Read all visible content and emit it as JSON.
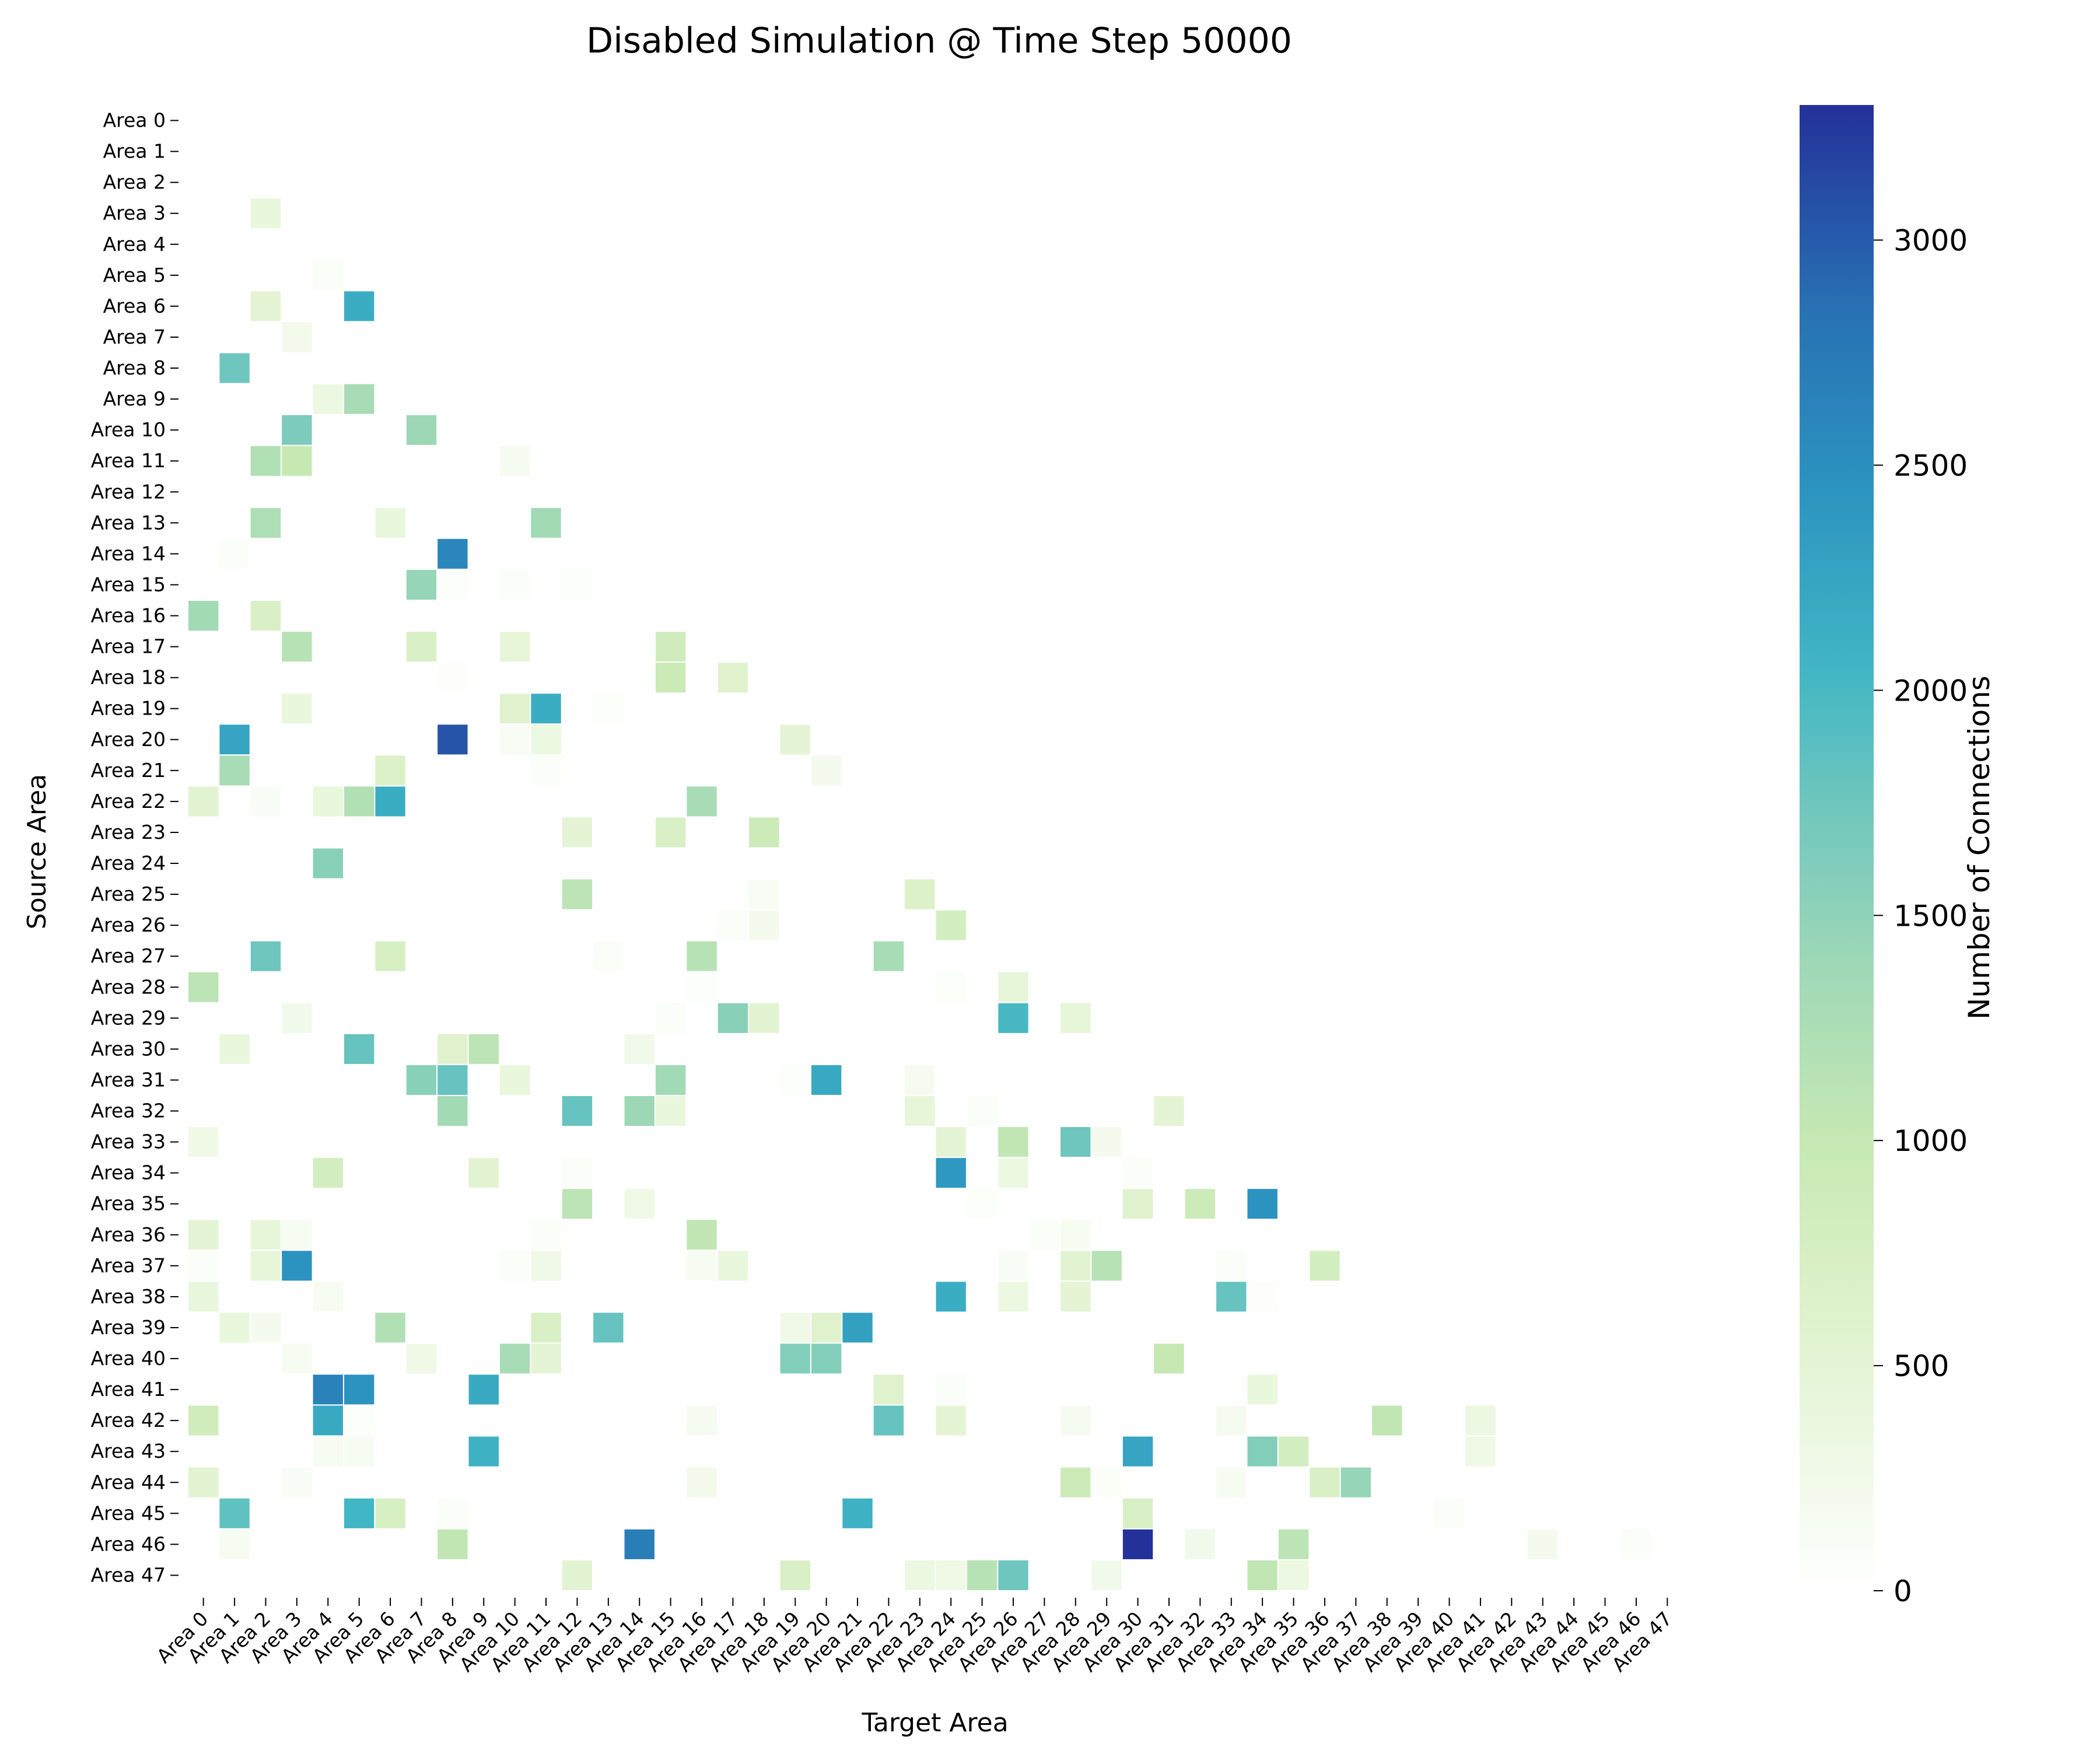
{
  "chart_data": {
    "type": "heatmap",
    "title": "Disabled Simulation @ Time Step 50000",
    "xlabel": "Target Area",
    "ylabel": "Source Area",
    "labels": [
      "Area 0",
      "Area 1",
      "Area 2",
      "Area 3",
      "Area 4",
      "Area 5",
      "Area 6",
      "Area 7",
      "Area 8",
      "Area 9",
      "Area 10",
      "Area 11",
      "Area 12",
      "Area 13",
      "Area 14",
      "Area 15",
      "Area 16",
      "Area 17",
      "Area 18",
      "Area 19",
      "Area 20",
      "Area 21",
      "Area 22",
      "Area 23",
      "Area 24",
      "Area 25",
      "Area 26",
      "Area 27",
      "Area 28",
      "Area 29",
      "Area 30",
      "Area 31",
      "Area 32",
      "Area 33",
      "Area 34",
      "Area 35",
      "Area 36",
      "Area 37",
      "Area 38",
      "Area 39",
      "Area 40",
      "Area 41",
      "Area 42",
      "Area 43",
      "Area 44",
      "Area 45",
      "Area 46",
      "Area 47"
    ],
    "colorbar": {
      "label": "Number of Connections",
      "min": 0,
      "max": 3300,
      "ticks": [
        0,
        500,
        1000,
        1500,
        2000,
        2500,
        3000
      ],
      "colormap": "YlGnBu (truncated)",
      "stops": [
        [
          0,
          "#ffffff"
        ],
        [
          0.1,
          "#edf8e3"
        ],
        [
          0.2,
          "#dcf1c8"
        ],
        [
          0.3,
          "#c7e9b4"
        ],
        [
          0.42,
          "#9fd8b6"
        ],
        [
          0.52,
          "#73c8bd"
        ],
        [
          0.62,
          "#41b6c4"
        ],
        [
          0.74,
          "#2c94c0"
        ],
        [
          0.86,
          "#2872b4"
        ],
        [
          1.0,
          "#24319a"
        ]
      ]
    },
    "values_note": "cells listed as [source, target, connections]; all other cells are 0",
    "cells": [
      [
        3,
        2,
        400
      ],
      [
        5,
        4,
        80
      ],
      [
        6,
        2,
        500
      ],
      [
        6,
        5,
        2150
      ],
      [
        7,
        3,
        220
      ],
      [
        8,
        1,
        1750
      ],
      [
        9,
        4,
        330
      ],
      [
        9,
        5,
        1300
      ],
      [
        10,
        3,
        1650
      ],
      [
        10,
        7,
        1400
      ],
      [
        11,
        2,
        1200
      ],
      [
        11,
        3,
        1000
      ],
      [
        11,
        10,
        180
      ],
      [
        13,
        2,
        1250
      ],
      [
        13,
        6,
        400
      ],
      [
        13,
        11,
        1350
      ],
      [
        14,
        1,
        80
      ],
      [
        14,
        8,
        2600
      ],
      [
        15,
        7,
        1450
      ],
      [
        15,
        8,
        60
      ],
      [
        15,
        10,
        80
      ],
      [
        15,
        12,
        60
      ],
      [
        16,
        0,
        1350
      ],
      [
        16,
        2,
        700
      ],
      [
        17,
        3,
        1150
      ],
      [
        17,
        7,
        700
      ],
      [
        17,
        10,
        450
      ],
      [
        17,
        15,
        850
      ],
      [
        18,
        8,
        30
      ],
      [
        18,
        15,
        950
      ],
      [
        18,
        17,
        600
      ],
      [
        19,
        3,
        400
      ],
      [
        19,
        10,
        600
      ],
      [
        19,
        11,
        2150
      ],
      [
        19,
        13,
        60
      ],
      [
        20,
        1,
        2250
      ],
      [
        20,
        8,
        3050
      ],
      [
        20,
        10,
        120
      ],
      [
        20,
        11,
        350
      ],
      [
        20,
        19,
        500
      ],
      [
        21,
        1,
        1300
      ],
      [
        21,
        6,
        650
      ],
      [
        21,
        11,
        80
      ],
      [
        21,
        20,
        200
      ],
      [
        22,
        0,
        550
      ],
      [
        22,
        2,
        100
      ],
      [
        22,
        4,
        400
      ],
      [
        22,
        5,
        1200
      ],
      [
        22,
        6,
        2150
      ],
      [
        22,
        16,
        1300
      ],
      [
        23,
        12,
        500
      ],
      [
        23,
        15,
        700
      ],
      [
        23,
        18,
        900
      ],
      [
        24,
        4,
        1550
      ],
      [
        25,
        12,
        1100
      ],
      [
        25,
        18,
        120
      ],
      [
        25,
        23,
        650
      ],
      [
        26,
        17,
        80
      ],
      [
        26,
        18,
        200
      ],
      [
        26,
        24,
        800
      ],
      [
        27,
        2,
        1750
      ],
      [
        27,
        6,
        750
      ],
      [
        27,
        13,
        80
      ],
      [
        27,
        16,
        1150
      ],
      [
        27,
        22,
        1300
      ],
      [
        28,
        0,
        1100
      ],
      [
        28,
        16,
        50
      ],
      [
        28,
        24,
        60
      ],
      [
        28,
        26,
        450
      ],
      [
        29,
        3,
        250
      ],
      [
        29,
        15,
        80
      ],
      [
        29,
        17,
        1550
      ],
      [
        29,
        18,
        550
      ],
      [
        29,
        26,
        2000
      ],
      [
        29,
        28,
        450
      ],
      [
        30,
        1,
        400
      ],
      [
        30,
        5,
        1800
      ],
      [
        30,
        8,
        600
      ],
      [
        30,
        9,
        1100
      ],
      [
        30,
        14,
        250
      ],
      [
        31,
        7,
        1550
      ],
      [
        31,
        8,
        1800
      ],
      [
        31,
        10,
        400
      ],
      [
        31,
        15,
        1350
      ],
      [
        31,
        19,
        50
      ],
      [
        31,
        20,
        2200
      ],
      [
        31,
        23,
        180
      ],
      [
        32,
        8,
        1350
      ],
      [
        32,
        12,
        1800
      ],
      [
        32,
        14,
        1400
      ],
      [
        32,
        15,
        400
      ],
      [
        32,
        23,
        450
      ],
      [
        32,
        25,
        80
      ],
      [
        32,
        31,
        500
      ],
      [
        33,
        0,
        300
      ],
      [
        33,
        24,
        500
      ],
      [
        33,
        26,
        1050
      ],
      [
        33,
        28,
        1750
      ],
      [
        33,
        29,
        200
      ],
      [
        34,
        4,
        800
      ],
      [
        34,
        9,
        550
      ],
      [
        34,
        12,
        80
      ],
      [
        34,
        24,
        2400
      ],
      [
        34,
        26,
        350
      ],
      [
        34,
        30,
        80
      ],
      [
        35,
        12,
        1100
      ],
      [
        35,
        14,
        300
      ],
      [
        35,
        25,
        60
      ],
      [
        35,
        30,
        600
      ],
      [
        35,
        32,
        900
      ],
      [
        35,
        34,
        2450
      ],
      [
        36,
        0,
        500
      ],
      [
        36,
        2,
        450
      ],
      [
        36,
        3,
        150
      ],
      [
        36,
        11,
        80
      ],
      [
        36,
        16,
        1050
      ],
      [
        36,
        27,
        80
      ],
      [
        36,
        28,
        150
      ],
      [
        37,
        0,
        80
      ],
      [
        37,
        2,
        450
      ],
      [
        37,
        3,
        2450
      ],
      [
        37,
        10,
        80
      ],
      [
        37,
        11,
        280
      ],
      [
        37,
        16,
        150
      ],
      [
        37,
        17,
        400
      ],
      [
        37,
        26,
        100
      ],
      [
        37,
        28,
        550
      ],
      [
        37,
        29,
        1150
      ],
      [
        37,
        33,
        80
      ],
      [
        37,
        36,
        800
      ],
      [
        38,
        0,
        400
      ],
      [
        38,
        4,
        150
      ],
      [
        38,
        24,
        2150
      ],
      [
        38,
        26,
        350
      ],
      [
        38,
        28,
        500
      ],
      [
        38,
        33,
        1800
      ],
      [
        38,
        34,
        30
      ],
      [
        39,
        1,
        400
      ],
      [
        39,
        2,
        200
      ],
      [
        39,
        6,
        1200
      ],
      [
        39,
        11,
        700
      ],
      [
        39,
        13,
        1800
      ],
      [
        39,
        19,
        280
      ],
      [
        39,
        20,
        600
      ],
      [
        39,
        21,
        2300
      ],
      [
        40,
        3,
        150
      ],
      [
        40,
        7,
        300
      ],
      [
        40,
        10,
        1300
      ],
      [
        40,
        11,
        500
      ],
      [
        40,
        19,
        1600
      ],
      [
        40,
        20,
        1600
      ],
      [
        40,
        31,
        1000
      ],
      [
        41,
        4,
        2650
      ],
      [
        41,
        5,
        2450
      ],
      [
        41,
        9,
        2200
      ],
      [
        41,
        22,
        600
      ],
      [
        41,
        24,
        80
      ],
      [
        41,
        34,
        400
      ],
      [
        42,
        0,
        850
      ],
      [
        42,
        4,
        2200
      ],
      [
        42,
        5,
        60
      ],
      [
        42,
        16,
        180
      ],
      [
        42,
        22,
        1800
      ],
      [
        42,
        24,
        500
      ],
      [
        42,
        28,
        180
      ],
      [
        42,
        33,
        180
      ],
      [
        42,
        38,
        1050
      ],
      [
        42,
        41,
        350
      ],
      [
        43,
        4,
        150
      ],
      [
        43,
        5,
        150
      ],
      [
        43,
        9,
        2100
      ],
      [
        43,
        30,
        2250
      ],
      [
        43,
        34,
        1600
      ],
      [
        43,
        35,
        800
      ],
      [
        43,
        41,
        300
      ],
      [
        44,
        0,
        550
      ],
      [
        44,
        3,
        100
      ],
      [
        44,
        16,
        220
      ],
      [
        44,
        28,
        900
      ],
      [
        44,
        29,
        80
      ],
      [
        44,
        33,
        150
      ],
      [
        44,
        36,
        700
      ],
      [
        44,
        37,
        1450
      ],
      [
        45,
        1,
        1850
      ],
      [
        45,
        5,
        2050
      ],
      [
        45,
        6,
        750
      ],
      [
        45,
        8,
        80
      ],
      [
        45,
        21,
        2100
      ],
      [
        45,
        30,
        700
      ],
      [
        45,
        40,
        80
      ],
      [
        46,
        1,
        150
      ],
      [
        46,
        8,
        1050
      ],
      [
        46,
        14,
        2700
      ],
      [
        46,
        30,
        3300
      ],
      [
        46,
        32,
        250
      ],
      [
        46,
        35,
        1100
      ],
      [
        46,
        43,
        200
      ],
      [
        46,
        46,
        80
      ],
      [
        47,
        12,
        550
      ],
      [
        47,
        19,
        700
      ],
      [
        47,
        23,
        350
      ],
      [
        47,
        24,
        300
      ],
      [
        47,
        25,
        1150
      ],
      [
        47,
        26,
        1750
      ],
      [
        47,
        29,
        250
      ],
      [
        47,
        34,
        1050
      ],
      [
        47,
        35,
        350
      ]
    ]
  }
}
